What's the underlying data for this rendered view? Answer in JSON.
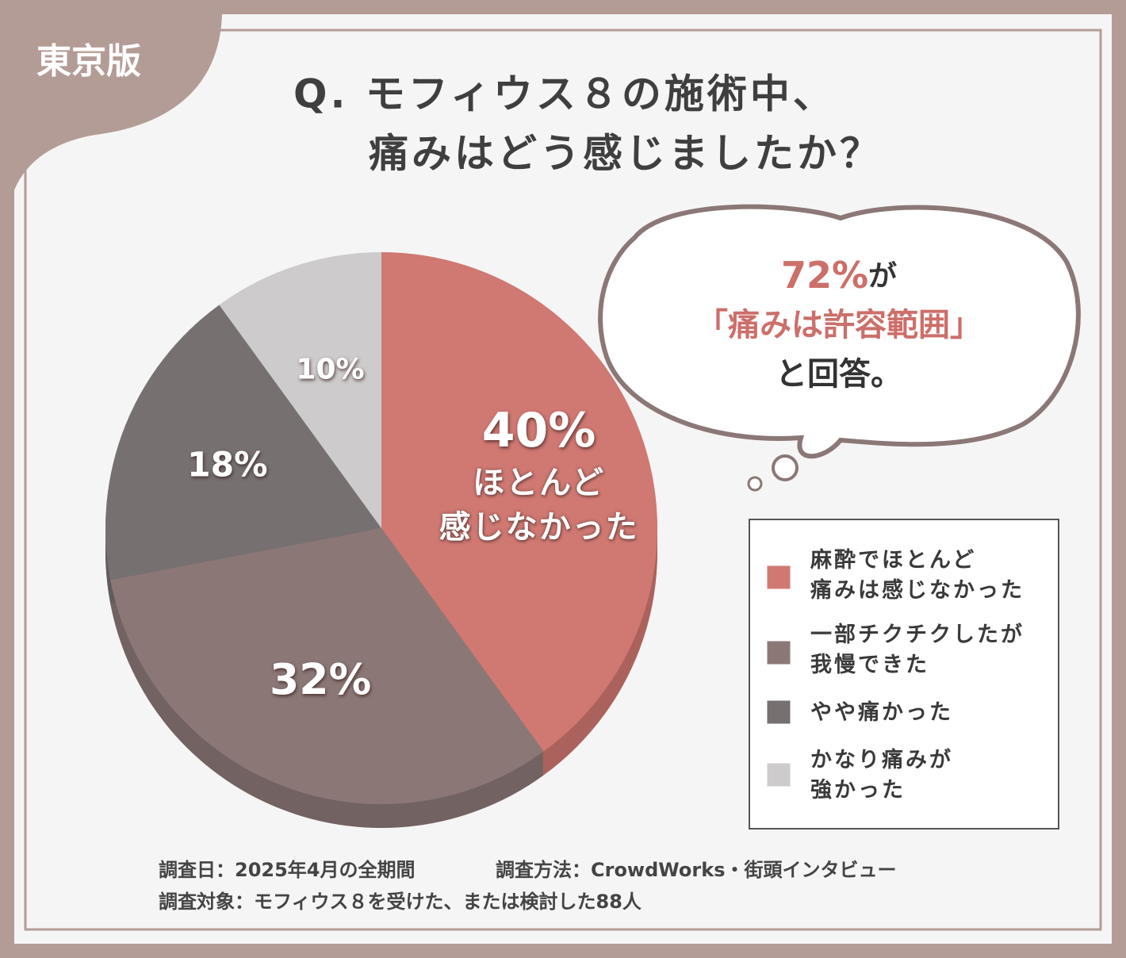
{
  "badge": "東京版",
  "title": [
    "Q. モフィウス８の施術中、",
    "痛みはどう感じましたか？"
  ],
  "callout": {
    "lead": "72%",
    "lead_suffix": "が",
    "quote": "「痛みは許容範囲」",
    "tail": "と回答。"
  },
  "chart_data": {
    "type": "pie",
    "categories": [
      "麻酔でほとんど\n痛みは感じなかった",
      "一部チクチクしたが\n我慢できた",
      "やや痛かった",
      "かなり痛みが\n強かった"
    ],
    "values": [
      40,
      32,
      18,
      10
    ],
    "value_labels": [
      "40%",
      "32%",
      "18%",
      "10%"
    ],
    "colors": [
      "#d07872",
      "#8b7876",
      "#767170",
      "#cdcbcb"
    ],
    "annotation": "ほとんど\n感じなかった",
    "legend": "right"
  },
  "footnotes": [
    "調査日：2025年4月の全期間",
    "調査方法：CrowdWorks・街頭インタビュー",
    "調査対象：モフィウス８を受けた、または検討した88人"
  ]
}
